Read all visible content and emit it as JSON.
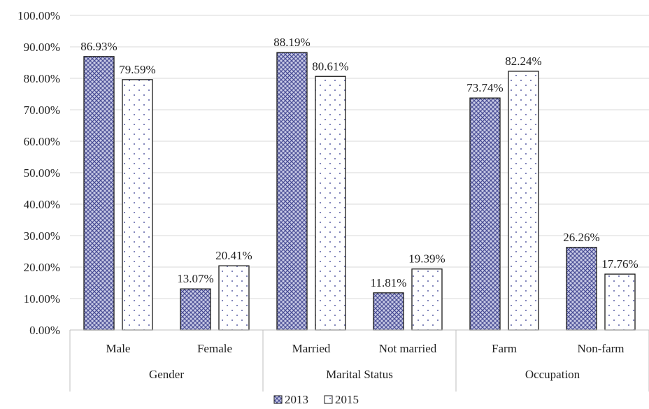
{
  "chart_data": {
    "type": "bar",
    "title": "",
    "xlabel": "",
    "ylabel": "",
    "ylim": [
      0,
      100
    ],
    "y_ticks": [
      "0.00%",
      "10.00%",
      "20.00%",
      "30.00%",
      "40.00%",
      "50.00%",
      "60.00%",
      "70.00%",
      "80.00%",
      "90.00%",
      "100.00%"
    ],
    "grid": true,
    "legend_position": "bottom",
    "groups": [
      {
        "label": "Gender",
        "categories": [
          "Male",
          "Female"
        ]
      },
      {
        "label": "Marital Status",
        "categories": [
          "Married",
          "Not married"
        ]
      },
      {
        "label": "Occupation",
        "categories": [
          "Farm",
          "Non-farm"
        ]
      }
    ],
    "categories": [
      "Male",
      "Female",
      "Married",
      "Not married",
      "Farm",
      "Non-farm"
    ],
    "series": [
      {
        "name": "2013",
        "pattern": "crosshatch",
        "color": "#5b5fa6",
        "values": [
          86.93,
          13.07,
          88.19,
          11.81,
          73.74,
          26.26
        ],
        "labels": [
          "86.93%",
          "13.07%",
          "88.19%",
          "11.81%",
          "73.74%",
          "26.26%"
        ]
      },
      {
        "name": "2015",
        "pattern": "dots",
        "color": "#5b5fa6",
        "values": [
          79.59,
          20.41,
          80.61,
          19.39,
          82.24,
          17.76
        ],
        "labels": [
          "79.59%",
          "20.41%",
          "80.61%",
          "19.39%",
          "82.24%",
          "17.76%"
        ]
      }
    ]
  }
}
